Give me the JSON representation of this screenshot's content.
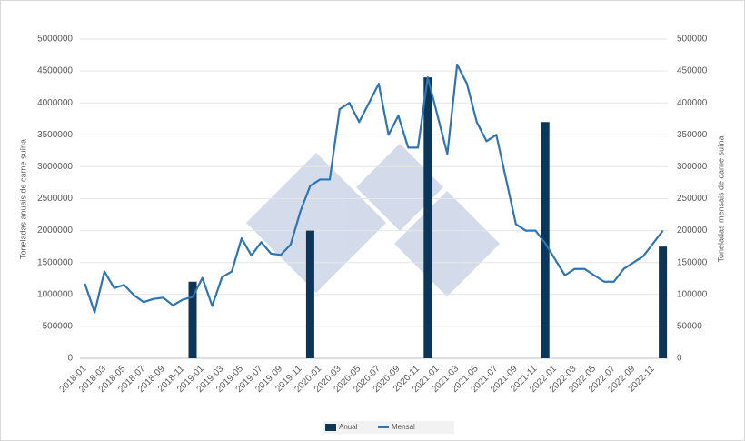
{
  "chart_data": {
    "type": "bar-line",
    "y_label": "Toneladas anuais de carne suína",
    "y2_label": "Toneladas mensais de carne suína",
    "categories": [
      "2018-01",
      null,
      "2018-03",
      null,
      "2018-05",
      null,
      "2018-07",
      null,
      "2018-09",
      null,
      "2018-11",
      null,
      "2019-01",
      null,
      "2019-03",
      null,
      "2019-05",
      null,
      "2019-07",
      null,
      "2019-09",
      null,
      "2019-11",
      null,
      "2020-01",
      null,
      "2020-03",
      null,
      "2020-05",
      null,
      "2020-07",
      null,
      "2020-09",
      null,
      "2020-11",
      null,
      "2021-01",
      null,
      "2021-03",
      null,
      "2021-05",
      null,
      "2021-07",
      null,
      "2021-09",
      null,
      "2021-11",
      null,
      "2022-01",
      null,
      "2022-03",
      null,
      "2022-05",
      null,
      "2022-07",
      null,
      "2022-09",
      null,
      "2022-11",
      null
    ],
    "series": [
      {
        "name": "Anual",
        "type": "bar",
        "color": "#0b3559",
        "values": [
          null,
          null,
          null,
          null,
          null,
          null,
          null,
          null,
          null,
          null,
          null,
          1200000,
          null,
          null,
          null,
          null,
          null,
          null,
          null,
          null,
          null,
          null,
          null,
          2000000,
          null,
          null,
          null,
          null,
          null,
          null,
          null,
          null,
          null,
          null,
          null,
          4400000,
          null,
          null,
          null,
          null,
          null,
          null,
          null,
          null,
          null,
          null,
          null,
          3700000,
          null,
          null,
          null,
          null,
          null,
          null,
          null,
          null,
          null,
          null,
          null,
          1750000
        ]
      },
      {
        "name": "Mensal",
        "type": "line",
        "axis": "y2",
        "color": "#2e75b6",
        "values": [
          117000,
          72000,
          136000,
          110000,
          115000,
          99000,
          88000,
          93000,
          95000,
          83000,
          92000,
          96000,
          126000,
          82000,
          127000,
          136000,
          188000,
          161000,
          182000,
          164000,
          162000,
          178000,
          230000,
          270000,
          280000,
          280000,
          390000,
          400000,
          370000,
          400000,
          430000,
          350000,
          380000,
          330000,
          330000,
          440000,
          380000,
          320000,
          460000,
          430000,
          370000,
          340000,
          350000,
          280000,
          210000,
          200000,
          200000,
          180000,
          155000,
          130000,
          140000,
          140000,
          130000,
          120000,
          120000,
          140000,
          150000,
          160000,
          180000,
          200000
        ]
      }
    ],
    "ylim": [
      0,
      5000000
    ],
    "yticks": [
      0,
      500000,
      1000000,
      1500000,
      2000000,
      2500000,
      3000000,
      3500000,
      4000000,
      4500000,
      5000000
    ],
    "y2lim": [
      0,
      500000
    ],
    "y2ticks": [
      0,
      50000,
      100000,
      150000,
      200000,
      250000,
      300000,
      350000,
      400000,
      450000,
      500000
    ],
    "grid": true,
    "legend": "bottom"
  }
}
